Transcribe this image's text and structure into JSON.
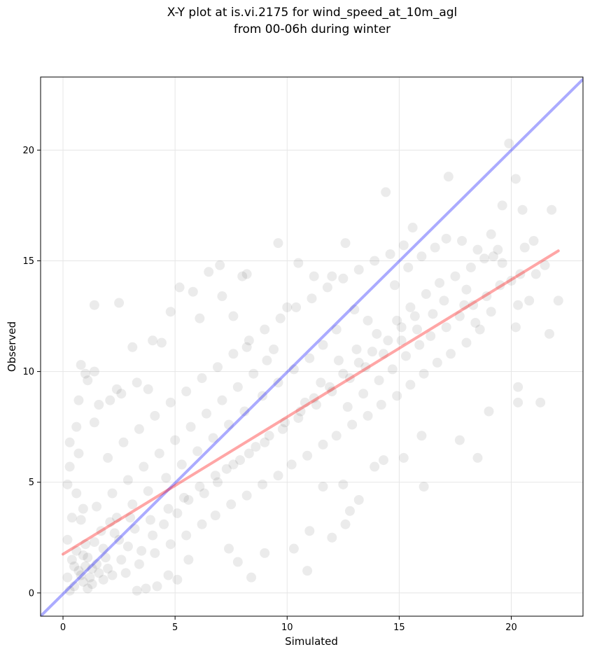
{
  "chart_data": {
    "type": "scatter",
    "title_line1": "X-Y plot at is.vi.2175 for wind_speed_at_10m_agl",
    "title_line2": "from 00-06h during winter",
    "xlabel": "Simulated",
    "ylabel": "Observed",
    "xlim": [
      -1.0,
      23.2
    ],
    "ylim": [
      -1.05,
      23.3
    ],
    "xticks": [
      0,
      5,
      10,
      15,
      20
    ],
    "yticks": [
      0,
      5,
      10,
      15,
      20
    ],
    "xtick_labels": [
      "0",
      "5",
      "10",
      "15",
      "20"
    ],
    "ytick_labels": [
      "0",
      "5",
      "10",
      "15",
      "20"
    ],
    "grid": true,
    "series": [
      {
        "kind": "points",
        "color": "#000000",
        "opacity": 0.08,
        "points": [
          [
            14.4,
            18.1
          ],
          [
            17.2,
            18.8
          ],
          [
            19.9,
            20.3
          ],
          [
            20.2,
            18.7
          ],
          [
            21.8,
            17.3
          ],
          [
            20.5,
            17.3
          ],
          [
            19.6,
            17.5
          ],
          [
            15.6,
            16.5
          ],
          [
            19.1,
            16.2
          ],
          [
            17.1,
            16.0
          ],
          [
            12.6,
            15.8
          ],
          [
            9.6,
            15.8
          ],
          [
            10.5,
            14.9
          ],
          [
            7.0,
            14.8
          ],
          [
            6.5,
            14.5
          ],
          [
            8.0,
            14.3
          ],
          [
            8.2,
            14.4
          ],
          [
            11.2,
            14.3
          ],
          [
            12.0,
            14.3
          ],
          [
            21.1,
            14.4
          ],
          [
            5.2,
            13.8
          ],
          [
            5.8,
            13.6
          ],
          [
            1.4,
            13.0
          ],
          [
            2.5,
            13.1
          ],
          [
            7.1,
            13.4
          ],
          [
            4.8,
            12.7
          ],
          [
            6.1,
            12.4
          ],
          [
            7.6,
            12.5
          ],
          [
            10.0,
            12.9
          ],
          [
            17.9,
            13.0
          ],
          [
            22.1,
            13.2
          ],
          [
            20.3,
            13.0
          ],
          [
            18.4,
            12.2
          ],
          [
            20.2,
            12.0
          ],
          [
            21.7,
            11.7
          ],
          [
            3.1,
            11.1
          ],
          [
            4.0,
            11.4
          ],
          [
            4.4,
            11.3
          ],
          [
            8.2,
            11.1
          ],
          [
            9.4,
            11.0
          ],
          [
            2.4,
            9.2
          ],
          [
            2.6,
            9.0
          ],
          [
            3.3,
            9.5
          ],
          [
            3.8,
            9.2
          ],
          [
            0.8,
            10.3
          ],
          [
            1.0,
            9.9
          ],
          [
            1.4,
            10.0
          ],
          [
            1.1,
            9.6
          ],
          [
            0.7,
            8.7
          ],
          [
            1.6,
            8.5
          ],
          [
            2.1,
            8.7
          ],
          [
            1.4,
            7.7
          ],
          [
            0.6,
            7.5
          ],
          [
            0.3,
            6.8
          ],
          [
            0.7,
            6.3
          ],
          [
            0.3,
            5.7
          ],
          [
            0.2,
            4.9
          ],
          [
            0.6,
            4.5
          ],
          [
            0.9,
            3.8
          ],
          [
            0.4,
            3.4
          ],
          [
            16.1,
            4.8
          ],
          [
            18.5,
            6.1
          ],
          [
            19.0,
            8.2
          ],
          [
            20.3,
            8.6
          ],
          [
            21.3,
            8.6
          ],
          [
            20.3,
            9.3
          ],
          [
            16.0,
            7.1
          ],
          [
            13.2,
            4.2
          ],
          [
            12.6,
            3.1
          ],
          [
            12.8,
            3.7
          ],
          [
            10.9,
            1.0
          ],
          [
            10.3,
            2.0
          ],
          [
            9.0,
            1.8
          ],
          [
            8.4,
            0.7
          ],
          [
            7.8,
            1.4
          ],
          [
            7.4,
            2.0
          ],
          [
            5.6,
            1.5
          ],
          [
            5.1,
            0.6
          ],
          [
            4.7,
            0.8
          ],
          [
            3.7,
            0.2
          ],
          [
            3.3,
            0.1
          ],
          [
            4.2,
            0.3
          ],
          [
            12.0,
            2.5
          ],
          [
            11.0,
            2.8
          ],
          [
            11.6,
            4.8
          ],
          [
            12.5,
            4.9
          ],
          [
            13.9,
            5.7
          ],
          [
            14.3,
            6.0
          ],
          [
            15.2,
            6.1
          ],
          [
            17.7,
            6.9
          ],
          [
            10.8,
            8.6
          ],
          [
            11.5,
            9.5
          ],
          [
            12.3,
            10.5
          ],
          [
            13.1,
            11.0
          ],
          [
            14.0,
            11.7
          ],
          [
            14.9,
            12.3
          ],
          [
            15.5,
            12.9
          ],
          [
            16.2,
            13.5
          ],
          [
            16.8,
            14.0
          ],
          [
            17.5,
            14.3
          ],
          [
            18.2,
            14.7
          ],
          [
            18.8,
            15.1
          ],
          [
            19.4,
            15.5
          ],
          [
            19.6,
            14.9
          ],
          [
            18.0,
            13.7
          ],
          [
            17.0,
            13.2
          ],
          [
            16.5,
            12.6
          ],
          [
            15.8,
            11.9
          ],
          [
            15.1,
            11.4
          ],
          [
            14.3,
            10.8
          ],
          [
            13.5,
            10.2
          ],
          [
            12.8,
            9.7
          ],
          [
            12.0,
            9.1
          ],
          [
            11.3,
            8.5
          ],
          [
            10.5,
            7.9
          ],
          [
            9.8,
            7.4
          ],
          [
            9.0,
            6.8
          ],
          [
            8.3,
            6.3
          ],
          [
            7.6,
            5.8
          ],
          [
            6.8,
            5.3
          ],
          [
            6.1,
            4.8
          ],
          [
            5.4,
            4.3
          ],
          [
            4.7,
            3.8
          ],
          [
            3.9,
            3.3
          ],
          [
            3.2,
            2.9
          ],
          [
            2.5,
            2.4
          ],
          [
            1.8,
            2.0
          ],
          [
            1.1,
            1.6
          ],
          [
            0.5,
            1.2
          ],
          [
            0.2,
            0.7
          ],
          [
            14.8,
            13.9
          ],
          [
            15.4,
            14.7
          ],
          [
            16.0,
            15.2
          ],
          [
            16.6,
            15.6
          ],
          [
            13.6,
            12.3
          ],
          [
            13.0,
            12.8
          ],
          [
            12.2,
            11.9
          ],
          [
            11.6,
            11.2
          ],
          [
            11.0,
            10.6
          ],
          [
            10.3,
            10.1
          ],
          [
            9.6,
            9.5
          ],
          [
            8.9,
            8.9
          ],
          [
            8.1,
            8.2
          ],
          [
            7.4,
            7.6
          ],
          [
            6.7,
            7.0
          ],
          [
            6.0,
            6.4
          ],
          [
            5.3,
            5.8
          ],
          [
            4.6,
            5.2
          ],
          [
            3.8,
            4.6
          ],
          [
            3.1,
            4.0
          ],
          [
            2.4,
            3.4
          ],
          [
            1.7,
            2.8
          ],
          [
            1.0,
            2.2
          ],
          [
            0.6,
            1.9
          ],
          [
            1.3,
            1.1
          ],
          [
            1.6,
            0.9
          ],
          [
            0.9,
            0.5
          ],
          [
            0.7,
            1.0
          ],
          [
            1.2,
            0.7
          ],
          [
            1.5,
            1.3
          ],
          [
            0.8,
            0.8
          ],
          [
            1.0,
            1.2
          ],
          [
            1.3,
            0.4
          ],
          [
            1.8,
            0.6
          ],
          [
            0.5,
            0.3
          ],
          [
            2.0,
            1.1
          ],
          [
            2.2,
            0.8
          ],
          [
            1.9,
            1.6
          ],
          [
            0.4,
            1.5
          ],
          [
            2.6,
            1.5
          ],
          [
            12.7,
            8.4
          ],
          [
            13.4,
            9.0
          ],
          [
            14.1,
            9.6
          ],
          [
            14.7,
            10.1
          ],
          [
            15.3,
            10.7
          ],
          [
            15.9,
            11.2
          ],
          [
            16.4,
            11.6
          ],
          [
            17.1,
            12.0
          ],
          [
            17.7,
            12.5
          ],
          [
            18.3,
            13.0
          ],
          [
            18.9,
            13.4
          ],
          [
            19.5,
            13.9
          ],
          [
            20.0,
            14.1
          ],
          [
            20.4,
            14.4
          ],
          [
            19.1,
            12.7
          ],
          [
            18.6,
            11.9
          ],
          [
            18.0,
            11.3
          ],
          [
            17.3,
            10.8
          ],
          [
            16.7,
            10.4
          ],
          [
            16.1,
            9.9
          ],
          [
            15.5,
            9.4
          ],
          [
            14.9,
            8.9
          ],
          [
            14.2,
            8.5
          ],
          [
            13.6,
            8.0
          ],
          [
            12.9,
            7.6
          ],
          [
            12.2,
            7.1
          ],
          [
            11.6,
            6.7
          ],
          [
            10.9,
            6.2
          ],
          [
            10.2,
            5.8
          ],
          [
            9.6,
            5.3
          ],
          [
            8.9,
            4.9
          ],
          [
            8.2,
            4.4
          ],
          [
            7.5,
            4.0
          ],
          [
            6.8,
            3.5
          ],
          [
            6.2,
            3.1
          ],
          [
            5.5,
            2.6
          ],
          [
            4.8,
            2.2
          ],
          [
            4.1,
            1.8
          ],
          [
            3.4,
            1.3
          ],
          [
            2.8,
            0.9
          ],
          [
            9.1,
            10.5
          ],
          [
            8.5,
            9.9
          ],
          [
            7.8,
            9.3
          ],
          [
            7.1,
            8.7
          ],
          [
            6.4,
            8.1
          ],
          [
            5.7,
            7.5
          ],
          [
            5.0,
            6.9
          ],
          [
            4.3,
            6.3
          ],
          [
            3.6,
            5.7
          ],
          [
            2.9,
            5.1
          ],
          [
            2.2,
            4.5
          ],
          [
            1.5,
            3.9
          ],
          [
            0.8,
            3.3
          ],
          [
            2.0,
            6.1
          ],
          [
            2.7,
            6.8
          ],
          [
            3.4,
            7.4
          ],
          [
            4.1,
            8.0
          ],
          [
            4.8,
            8.6
          ],
          [
            5.5,
            9.1
          ],
          [
            6.2,
            9.7
          ],
          [
            6.9,
            10.2
          ],
          [
            7.6,
            10.8
          ],
          [
            8.3,
            11.4
          ],
          [
            9.0,
            11.9
          ],
          [
            9.7,
            12.4
          ],
          [
            10.4,
            12.9
          ],
          [
            11.1,
            13.3
          ],
          [
            11.8,
            13.8
          ],
          [
            12.5,
            14.2
          ],
          [
            13.2,
            14.6
          ],
          [
            13.9,
            15.0
          ],
          [
            14.6,
            15.3
          ],
          [
            15.2,
            15.7
          ],
          [
            17.8,
            15.9
          ],
          [
            18.5,
            15.5
          ],
          [
            19.2,
            15.2
          ],
          [
            20.6,
            15.6
          ],
          [
            21.0,
            15.9
          ],
          [
            20.8,
            13.2
          ],
          [
            21.5,
            14.8
          ],
          [
            1.1,
            0.2
          ],
          [
            0.3,
            0.1
          ],
          [
            0.9,
            1.7
          ],
          [
            1.4,
            2.3
          ],
          [
            2.3,
            2.7
          ],
          [
            0.2,
            2.4
          ],
          [
            2.9,
            2.1
          ],
          [
            3.5,
            1.9
          ],
          [
            3.0,
            3.4
          ],
          [
            2.1,
            3.2
          ],
          [
            4.0,
            2.6
          ],
          [
            4.5,
            3.1
          ],
          [
            5.1,
            3.6
          ],
          [
            5.6,
            4.2
          ],
          [
            6.3,
            4.5
          ],
          [
            6.9,
            5.0
          ],
          [
            7.3,
            5.6
          ],
          [
            7.9,
            6.0
          ],
          [
            8.6,
            6.6
          ],
          [
            9.2,
            7.1
          ],
          [
            9.9,
            7.7
          ],
          [
            10.6,
            8.2
          ],
          [
            11.2,
            8.8
          ],
          [
            11.9,
            9.3
          ],
          [
            12.5,
            9.9
          ],
          [
            13.2,
            10.4
          ],
          [
            13.8,
            10.9
          ],
          [
            14.5,
            11.4
          ],
          [
            15.1,
            12.0
          ],
          [
            15.7,
            12.5
          ]
        ]
      },
      {
        "kind": "line",
        "name": "",
        "color": "#0000ff",
        "opacity": 0.33,
        "from": [
          -1.0,
          -1.05
        ],
        "to": [
          23.2,
          23.2
        ]
      },
      {
        "kind": "line",
        "name": "",
        "color": "#ff0000",
        "opacity": 0.35,
        "from": [
          0.0,
          1.75
        ],
        "to": [
          22.1,
          15.45
        ]
      }
    ]
  }
}
